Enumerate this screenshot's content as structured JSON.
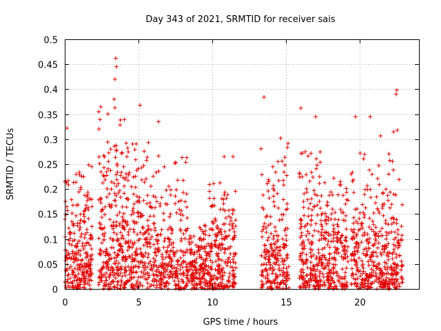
{
  "chart_data": {
    "type": "scatter",
    "title": "Day 343 of 2021, SRMTID for receiver sais",
    "xlabel": "GPS time / hours",
    "ylabel": "SRMTID / TECUs",
    "xlim": [
      0,
      24
    ],
    "ylim": [
      0,
      0.5
    ],
    "x_ticks": [
      0,
      5,
      10,
      15,
      20
    ],
    "x_tick_labels": [
      "0",
      "5",
      "10",
      "15",
      "20"
    ],
    "y_ticks": [
      0,
      0.05,
      0.1,
      0.15,
      0.2,
      0.25,
      0.3,
      0.35,
      0.4,
      0.45,
      0.5
    ],
    "y_tick_labels": [
      "0",
      "0.05",
      "0.1",
      "0.15",
      "0.2",
      "0.25",
      "0.3",
      "0.35",
      "0.4",
      "0.45",
      "0.5"
    ],
    "grid": true,
    "marker": "+",
    "color": "#e00000",
    "series": [
      {
        "name": "SRMTID",
        "segments": [
          {
            "start": 0.0,
            "end": 1.85,
            "y_mean": 0.11,
            "y_max": 0.32,
            "n": 260
          },
          {
            "start": 2.3,
            "end": 4.1,
            "y_mean": 0.12,
            "y_max": 0.46,
            "n": 270
          },
          {
            "start": 4.1,
            "end": 6.2,
            "y_mean": 0.11,
            "y_max": 0.37,
            "n": 250
          },
          {
            "start": 6.2,
            "end": 8.3,
            "y_mean": 0.08,
            "y_max": 0.34,
            "n": 240
          },
          {
            "start": 8.3,
            "end": 9.8,
            "y_mean": 0.07,
            "y_max": 0.17,
            "n": 170
          },
          {
            "start": 9.8,
            "end": 11.6,
            "y_mean": 0.1,
            "y_max": 0.27,
            "n": 230
          },
          {
            "start": 13.3,
            "end": 15.2,
            "y_mean": 0.08,
            "y_max": 0.38,
            "n": 230
          },
          {
            "start": 15.9,
            "end": 17.4,
            "y_mean": 0.1,
            "y_max": 0.36,
            "n": 200
          },
          {
            "start": 17.4,
            "end": 19.2,
            "y_mean": 0.1,
            "y_max": 0.28,
            "n": 210
          },
          {
            "start": 19.4,
            "end": 21.2,
            "y_mean": 0.09,
            "y_max": 0.35,
            "n": 210
          },
          {
            "start": 21.2,
            "end": 22.9,
            "y_mean": 0.08,
            "y_max": 0.4,
            "n": 210
          }
        ],
        "peaks": [
          {
            "x": 3.45,
            "y": 0.462
          },
          {
            "x": 3.5,
            "y": 0.445
          },
          {
            "x": 3.4,
            "y": 0.42
          },
          {
            "x": 3.35,
            "y": 0.38
          },
          {
            "x": 5.1,
            "y": 0.368
          },
          {
            "x": 6.35,
            "y": 0.335
          },
          {
            "x": 13.5,
            "y": 0.384
          },
          {
            "x": 16.0,
            "y": 0.362
          },
          {
            "x": 17.0,
            "y": 0.345
          },
          {
            "x": 19.7,
            "y": 0.345
          },
          {
            "x": 20.7,
            "y": 0.345
          },
          {
            "x": 22.5,
            "y": 0.398
          },
          {
            "x": 22.45,
            "y": 0.39
          },
          {
            "x": 0.15,
            "y": 0.322
          },
          {
            "x": 2.3,
            "y": 0.355
          },
          {
            "x": 11.4,
            "y": 0.265
          },
          {
            "x": 10.8,
            "y": 0.265
          }
        ]
      }
    ]
  }
}
